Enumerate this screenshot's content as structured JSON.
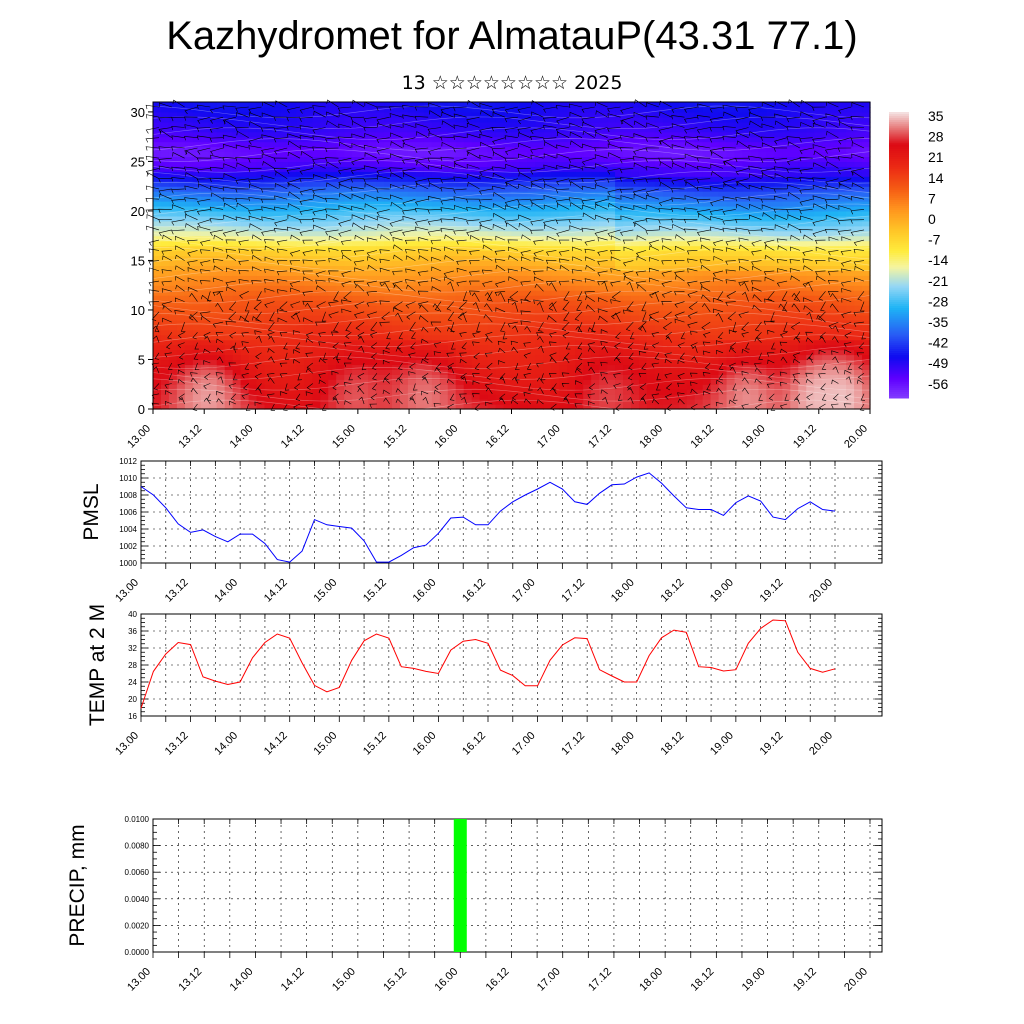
{
  "header": {
    "title": "Kazhydromet for AlmatauP(43.31 77.1)",
    "subtitle": "13 ☆☆☆☆☆☆☆☆ 2025"
  },
  "time_ticks": [
    "13.00",
    "13.12",
    "14.00",
    "14.12",
    "15.00",
    "15.12",
    "16.00",
    "16.12",
    "17.00",
    "17.12",
    "18.00",
    "18.12",
    "19.00",
    "19.12",
    "20.00"
  ],
  "chart_data": [
    {
      "type": "heatmap",
      "panel": "vertical-cross-section",
      "x_ticks": [
        "13.00",
        "13.12",
        "14.00",
        "14.12",
        "15.00",
        "15.12",
        "16.00",
        "16.12",
        "17.00",
        "17.12",
        "18.00",
        "18.12",
        "19.00",
        "19.12",
        "20.00"
      ],
      "y_ticks": [
        "0",
        "5",
        "10",
        "15",
        "20",
        "25",
        "30"
      ],
      "ylim": [
        0,
        31
      ],
      "colorbar_labels": [
        "35",
        "28",
        "21",
        "14",
        "7",
        "0",
        "-7",
        "-14",
        "-21",
        "-28",
        "-35",
        "-42",
        "-49",
        "-56"
      ],
      "colorbar_range": [
        -63,
        42
      ],
      "level_profile": [
        {
          "y": 0,
          "value": 30
        },
        {
          "y": 4,
          "value": 26
        },
        {
          "y": 8,
          "value": 20
        },
        {
          "y": 11,
          "value": 14
        },
        {
          "y": 13.5,
          "value": 6
        },
        {
          "y": 16,
          "value": -4
        },
        {
          "y": 17.5,
          "value": -16
        },
        {
          "y": 19.5,
          "value": -26
        },
        {
          "y": 22,
          "value": -38
        },
        {
          "y": 24.5,
          "value": -54
        },
        {
          "y": 26,
          "value": -58
        },
        {
          "y": 28,
          "value": -52
        },
        {
          "y": 31,
          "value": -48
        }
      ],
      "surface_highlights": [
        {
          "x": 1.05,
          "value": 38
        },
        {
          "x": 3.95,
          "value": 34
        },
        {
          "x": 5.3,
          "value": 36
        },
        {
          "x": 8.9,
          "value": 33
        },
        {
          "x": 11.6,
          "value": 37
        },
        {
          "x": 12.95,
          "value": 39
        },
        {
          "x": 13.45,
          "value": 40
        }
      ],
      "wind_vectors": "dense field of black wind barbs over whole section"
    },
    {
      "type": "line",
      "ylabel": "PMSL",
      "ylim": [
        1000,
        1012
      ],
      "y_ticks": [
        "1000",
        "1002",
        "1004",
        "1006",
        "1008",
        "1010",
        "1012"
      ],
      "x_ticks": [
        "13.00",
        "13.12",
        "14.00",
        "14.12",
        "15.00",
        "15.12",
        "16.00",
        "16.12",
        "17.00",
        "17.12",
        "18.00",
        "18.12",
        "19.00",
        "19.12",
        "20.00"
      ],
      "x_step_hours": 3,
      "color": "#0000ff",
      "series": [
        {
          "values": [
            1009.0,
            1008.0,
            1006.5,
            1004.6,
            1003.6,
            1003.9,
            1003.1,
            1002.5,
            1003.4,
            1003.4,
            1002.3,
            1000.4,
            1000.1,
            1001.4,
            1005.1,
            1004.5,
            1004.3,
            1004.1,
            1002.6,
            1000.1,
            1000.1,
            1000.9,
            1001.8,
            1002.1,
            1003.5,
            1005.3,
            1005.4,
            1004.5,
            1004.5,
            1006.1,
            1007.2,
            1008.0,
            1008.7,
            1009.5,
            1008.7,
            1007.2,
            1006.9,
            1008.2,
            1009.2,
            1009.3,
            1010.1,
            1010.6,
            1009.4,
            1007.9,
            1006.5,
            1006.3,
            1006.3,
            1005.6,
            1007.1,
            1007.9,
            1007.3,
            1005.4,
            1005.1,
            1006.4,
            1007.2,
            1006.3,
            1006.1
          ]
        }
      ]
    },
    {
      "type": "line",
      "ylabel": "TEMP at 2 M",
      "ylim": [
        16,
        40
      ],
      "y_ticks": [
        "16",
        "20",
        "24",
        "28",
        "32",
        "36",
        "40"
      ],
      "x_ticks": [
        "13.00",
        "13.12",
        "14.00",
        "14.12",
        "15.00",
        "15.12",
        "16.00",
        "16.12",
        "17.00",
        "17.12",
        "18.00",
        "18.12",
        "19.00",
        "19.12",
        "20.00"
      ],
      "x_step_hours": 3,
      "color": "#ff0000",
      "series": [
        {
          "values": [
            17.8,
            26.5,
            30.6,
            33.3,
            32.8,
            25.2,
            24.2,
            23.4,
            24.0,
            29.7,
            33.3,
            35.3,
            34.3,
            28.5,
            23.2,
            21.7,
            22.7,
            29.1,
            33.7,
            35.3,
            34.3,
            27.6,
            27.2,
            26.5,
            26.0,
            31.5,
            33.6,
            34.0,
            33.1,
            26.8,
            25.5,
            23.1,
            23.1,
            29.1,
            32.7,
            34.4,
            34.2,
            26.9,
            25.4,
            24.0,
            24.0,
            30.2,
            34.4,
            36.2,
            35.7,
            27.6,
            27.4,
            26.6,
            26.9,
            33.1,
            36.6,
            38.6,
            38.4,
            31.0,
            27.2,
            26.3,
            27.1
          ]
        }
      ]
    },
    {
      "type": "bar",
      "ylabel": "PRECIP, mm",
      "ylim": [
        0,
        0.01
      ],
      "y_ticks": [
        "0.0000",
        "0.0020",
        "0.0040",
        "0.0060",
        "0.0080",
        "0.0100"
      ],
      "x_ticks": [
        "13.00",
        "13.12",
        "14.00",
        "14.12",
        "15.00",
        "15.12",
        "16.00",
        "16.12",
        "17.00",
        "17.12",
        "18.00",
        "18.12",
        "19.00",
        "19.12",
        "20.00"
      ],
      "color": "#00ff00",
      "bars": [
        {
          "x": "16.00",
          "value": 0.01
        }
      ]
    }
  ]
}
